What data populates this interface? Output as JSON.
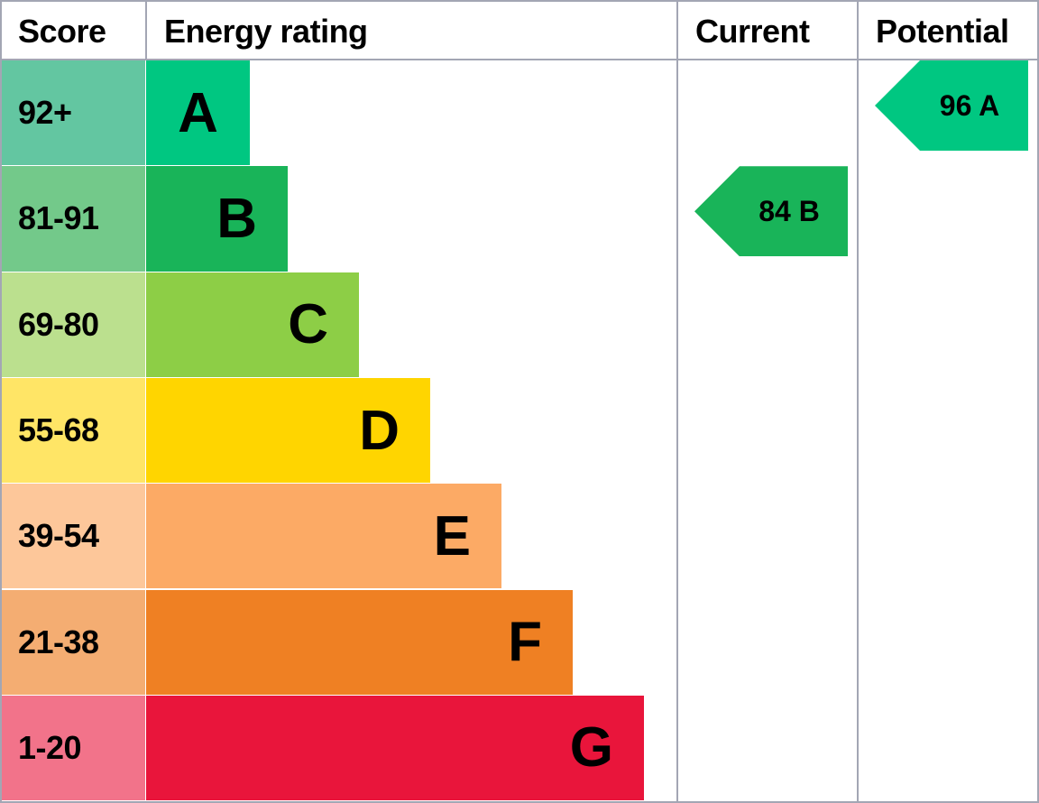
{
  "chart_data": {
    "type": "table",
    "headers": {
      "score": "Score",
      "rating": "Energy rating",
      "current": "Current",
      "potential": "Potential"
    },
    "bands": [
      {
        "letter": "A",
        "range": "92+",
        "color": "#00c781",
        "score_color": "#63c6a1"
      },
      {
        "letter": "B",
        "range": "81-91",
        "color": "#19b459",
        "score_color": "#73c98a"
      },
      {
        "letter": "C",
        "range": "69-80",
        "color": "#8dce46",
        "score_color": "#bbe08e"
      },
      {
        "letter": "D",
        "range": "55-68",
        "color": "#ffd500",
        "score_color": "#ffe566"
      },
      {
        "letter": "E",
        "range": "39-54",
        "color": "#fcaa65",
        "score_color": "#fdc79a"
      },
      {
        "letter": "F",
        "range": "21-38",
        "color": "#ef8023",
        "score_color": "#f4ad72"
      },
      {
        "letter": "G",
        "range": "1-20",
        "color": "#e9153b",
        "score_color": "#f2738a"
      }
    ],
    "current": {
      "value": 84,
      "band": "B",
      "label": "84 B",
      "color": "#19b459"
    },
    "potential": {
      "value": 96,
      "band": "A",
      "label": "96 A",
      "color": "#00c781"
    }
  }
}
